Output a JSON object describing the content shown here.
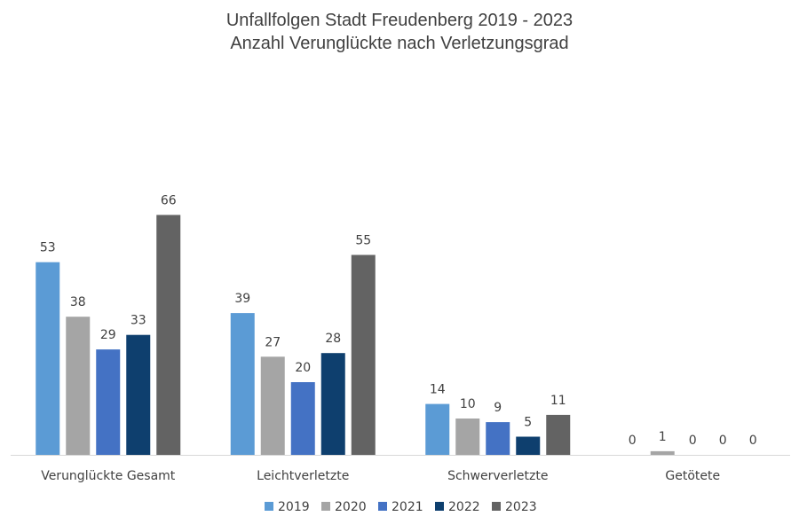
{
  "chart_data": {
    "type": "bar",
    "title": "Unfallfolgen Stadt Freudenberg 2019 - 2023",
    "subtitle": "Anzahl Verunglückte nach Verletzungsgrad",
    "xlabel": "",
    "ylabel": "",
    "ylim": [
      0,
      70
    ],
    "grid": false,
    "legend": "bottom",
    "categories": [
      "Verunglückte Gesamt",
      "Leichtverletzte",
      "Schwerverletzte",
      "Getötete"
    ],
    "series": [
      {
        "name": "2019",
        "color": "#5B9BD5",
        "values": [
          53,
          39,
          14,
          0
        ]
      },
      {
        "name": "2020",
        "color": "#A5A5A5",
        "values": [
          38,
          27,
          10,
          1
        ]
      },
      {
        "name": "2021",
        "color": "#4472C4",
        "values": [
          29,
          20,
          9,
          0
        ]
      },
      {
        "name": "2022",
        "color": "#0E3F6E",
        "values": [
          33,
          28,
          5,
          0
        ]
      },
      {
        "name": "2023",
        "color": "#636363",
        "values": [
          66,
          55,
          11,
          0
        ]
      }
    ]
  }
}
